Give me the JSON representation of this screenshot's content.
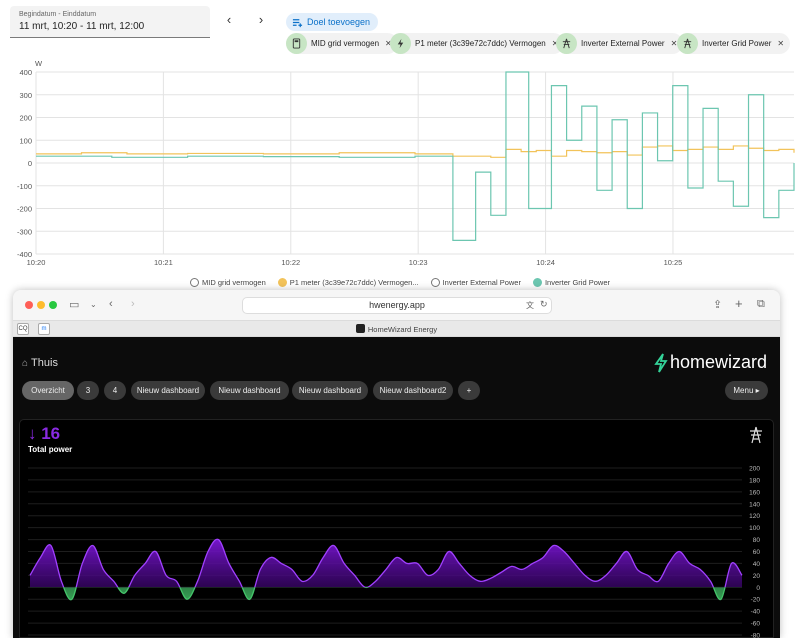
{
  "date_range": {
    "label": "Begindatum - Einddatum",
    "value": "11 mrt, 10:20 - 11 mrt, 12:00"
  },
  "nav": {
    "prev": "‹",
    "next": "›"
  },
  "add_target_label": "Doel toevoegen",
  "chips": [
    {
      "label": "MID grid vermogen",
      "icon": "calculator-icon"
    },
    {
      "label": "P1 meter (3c39e72c7ddc) Vermogen",
      "icon": "lightning-icon"
    },
    {
      "label": "Inverter External Power",
      "icon": "transmission-tower-icon"
    },
    {
      "label": "Inverter Grid Power",
      "icon": "transmission-tower-icon"
    }
  ],
  "legend": [
    {
      "label": "MID grid vermogen",
      "color": "#ffffff",
      "filled": false
    },
    {
      "label": "P1 meter (3c39e72c7ddc) Vermogen...",
      "color": "#f2c35a",
      "filled": true
    },
    {
      "label": "Inverter External Power",
      "color": "#ffffff",
      "filled": false
    },
    {
      "label": "Inverter Grid Power",
      "color": "#6cc6b0",
      "filled": true
    }
  ],
  "chart_data": [
    {
      "type": "line",
      "ylabel": "W",
      "ylim": [
        -400,
        400
      ],
      "yticks": [
        "400",
        "300",
        "200",
        "100",
        "0",
        "-100",
        "-200",
        "-300",
        "-400"
      ],
      "xticks": [
        "10:20",
        "10:21",
        "10:22",
        "10:23",
        "10:24",
        "10:25"
      ],
      "grid": true,
      "series": [
        {
          "name": "P1 meter (3c39e72c7ddc) Vermogen",
          "color": "#f2c35a",
          "x": [
            0,
            0.06,
            0.12,
            0.2,
            0.3,
            0.4,
            0.5,
            0.55,
            0.6,
            0.62,
            0.64,
            0.66,
            0.68,
            0.7,
            0.72,
            0.74,
            0.76,
            0.78,
            0.8,
            0.82,
            0.84,
            0.86,
            0.88,
            0.9,
            0.92,
            0.94,
            0.96,
            0.98,
            1.0
          ],
          "y": [
            40,
            45,
            40,
            42,
            40,
            45,
            40,
            30,
            25,
            60,
            50,
            55,
            30,
            55,
            50,
            45,
            50,
            35,
            70,
            75,
            55,
            60,
            70,
            60,
            75,
            65,
            55,
            60,
            45
          ]
        },
        {
          "name": "Inverter Grid Power",
          "color": "#6cc6b0",
          "x": [
            0,
            0.1,
            0.2,
            0.3,
            0.4,
            0.5,
            0.55,
            0.58,
            0.6,
            0.62,
            0.65,
            0.68,
            0.7,
            0.72,
            0.74,
            0.76,
            0.78,
            0.8,
            0.82,
            0.84,
            0.86,
            0.88,
            0.9,
            0.92,
            0.94,
            0.96,
            0.98,
            1.0
          ],
          "y": [
            30,
            25,
            30,
            28,
            25,
            30,
            -340,
            -40,
            -230,
            400,
            -200,
            340,
            100,
            250,
            -120,
            190,
            -200,
            220,
            10,
            340,
            -110,
            240,
            -80,
            -190,
            300,
            -240,
            -120,
            0
          ]
        }
      ]
    },
    {
      "type": "area",
      "title": "Total power",
      "value": "↓ 16",
      "ylim": [
        -80,
        200
      ],
      "yticks": [
        "200",
        "180",
        "160",
        "140",
        "120",
        "100",
        "80",
        "60",
        "40",
        "20",
        "0",
        "-20",
        "-40",
        "-60",
        "-80"
      ],
      "series": [
        {
          "name": "Total power",
          "positive_color": "#7b16d6",
          "negative_color": "#3ba85a",
          "values": [
            20,
            50,
            70,
            10,
            -20,
            40,
            70,
            30,
            10,
            -10,
            20,
            40,
            60,
            20,
            10,
            -20,
            10,
            60,
            80,
            40,
            10,
            -20,
            30,
            50,
            40,
            30,
            10,
            20,
            50,
            70,
            40,
            20,
            0,
            10,
            30,
            50,
            40,
            40,
            20,
            30,
            60,
            40,
            20,
            10,
            15,
            25,
            35,
            30,
            40,
            50,
            70,
            60,
            40,
            20,
            10,
            20,
            40,
            60,
            30,
            20,
            10,
            40,
            60,
            40,
            30,
            10,
            -20,
            40,
            20
          ]
        }
      ]
    }
  ],
  "browser": {
    "url": "hwenergy.app",
    "tab_title": "HomeWizard Energy",
    "fav1": "CQ",
    "fav2": "m"
  },
  "app": {
    "home_label": "Thuis",
    "logo_text": "homewizard",
    "tabs": [
      "Overzicht",
      "3",
      "4",
      "Nieuw dashboard",
      "Nieuw dashboard",
      "Nieuw dashboard",
      "Nieuw dashboard2",
      "+"
    ],
    "menu_label": "Menu ▸",
    "power_value": "↓ 16",
    "power_label": "Total power"
  }
}
